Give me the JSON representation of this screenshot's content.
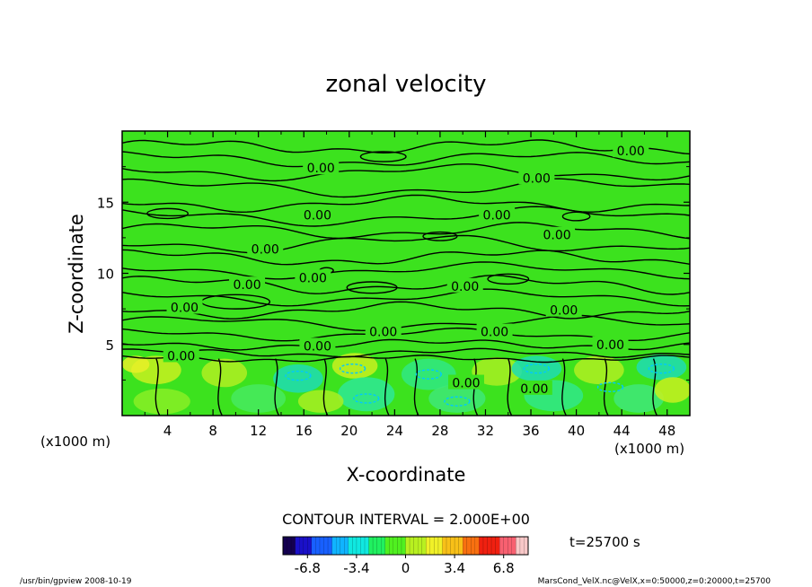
{
  "chart_data": {
    "type": "contour",
    "title": "zonal velocity",
    "xlabel": "X-coordinate",
    "ylabel": "Z-coordinate",
    "x_unit_left": "(x1000 m)",
    "x_unit_right": "(x1000 m)",
    "xlim": [
      0,
      50
    ],
    "ylim": [
      0,
      20
    ],
    "x_ticks": [
      4,
      8,
      12,
      16,
      20,
      24,
      28,
      32,
      36,
      40,
      44,
      48
    ],
    "y_ticks": [
      5,
      10,
      15
    ],
    "contour_labels": [
      {
        "text": "0.00",
        "x": 44.8,
        "y": 18.6
      },
      {
        "text": "0.00",
        "x": 17.5,
        "y": 17.4
      },
      {
        "text": "0.00",
        "x": 36.5,
        "y": 16.7
      },
      {
        "text": "0.00",
        "x": 17.2,
        "y": 14.1
      },
      {
        "text": "0.00",
        "x": 33.0,
        "y": 14.1
      },
      {
        "text": "0.00",
        "x": 38.3,
        "y": 12.7
      },
      {
        "text": "0.00",
        "x": 12.6,
        "y": 11.7
      },
      {
        "text": "0.00",
        "x": 16.8,
        "y": 9.7
      },
      {
        "text": "0.00",
        "x": 11.0,
        "y": 9.2
      },
      {
        "text": "0.00",
        "x": 30.2,
        "y": 9.1
      },
      {
        "text": "0.00",
        "x": 5.5,
        "y": 7.6
      },
      {
        "text": "0.00",
        "x": 38.9,
        "y": 7.4
      },
      {
        "text": "0.00",
        "x": 23.0,
        "y": 5.9
      },
      {
        "text": "0.00",
        "x": 32.8,
        "y": 5.9
      },
      {
        "text": "0.00",
        "x": 17.2,
        "y": 4.9
      },
      {
        "text": "0.00",
        "x": 43.0,
        "y": 5.0
      },
      {
        "text": "0.00",
        "x": 5.2,
        "y": 4.2
      },
      {
        "text": "0.00",
        "x": 30.3,
        "y": 2.3
      },
      {
        "text": "0.00",
        "x": 36.3,
        "y": 1.9
      }
    ],
    "contour_interval": "CONTOUR INTERVAL = 2.000E+00",
    "colorbar": {
      "range": [
        -8.5,
        8.5
      ],
      "ticks": [
        "-6.8",
        "-3.4",
        "0",
        "3.4",
        "6.8"
      ],
      "tick_values": [
        -6.8,
        -3.4,
        0,
        3.4,
        6.8
      ],
      "colors": [
        "#140050",
        "#1a10c8",
        "#1860ff",
        "#10b4ff",
        "#10e8e0",
        "#20f060",
        "#50f020",
        "#b8f020",
        "#f0f028",
        "#f8c018",
        "#f87010",
        "#f02010",
        "#f86070",
        "#f8c8c8"
      ]
    },
    "time_label": "t=25700 s"
  },
  "footer": {
    "left": "/usr/bin/gpview  2008-10-19",
    "right": "MarsCond_VelX.nc@VelX,x=0:50000,z=0:20000,t=25700"
  }
}
